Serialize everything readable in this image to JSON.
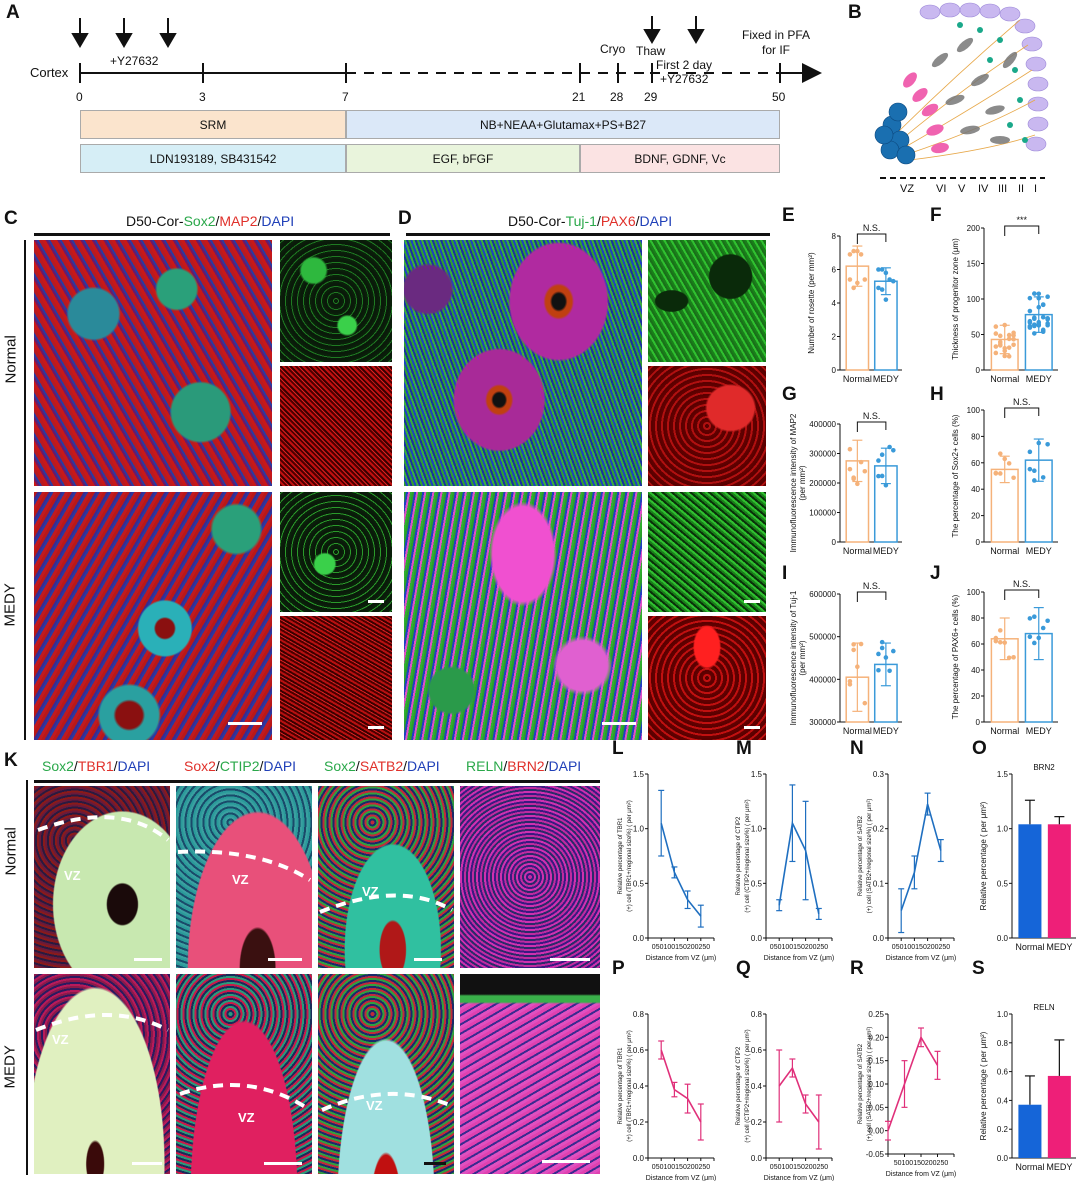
{
  "panels": {
    "A": "A",
    "B": "B",
    "C": "C",
    "D": "D",
    "E": "E",
    "F": "F",
    "G": "G",
    "H": "H",
    "I": "I",
    "J": "J",
    "K": "K",
    "L": "L",
    "M": "M",
    "N": "N",
    "O": "O",
    "P": "P",
    "Q": "Q",
    "R": "R",
    "S": "S"
  },
  "timeline": {
    "row_label": "Cortex",
    "y27632_1": "+Y27632",
    "cryo": "Cryo",
    "thaw": "Thaw",
    "first2": "First 2 day",
    "y27632_2": "+Y27632",
    "fixed1": "Fixed in PFA",
    "fixed2": "for IF",
    "ticks": [
      "0",
      "3",
      "7",
      "21",
      "28",
      "29",
      "50"
    ],
    "media": {
      "srm": "SRM",
      "nb": "NB+NEAA+Glutamax+PS+B27"
    },
    "factors": {
      "ldn": "LDN193189, SB431542",
      "egf": "EGF, bFGF",
      "bdnf": "BDNF, GDNF, Vc"
    }
  },
  "cortex_layers": [
    "VZ",
    "VI",
    "V",
    "IV",
    "III",
    "II",
    "I"
  ],
  "C": {
    "pre": "D50-Cor-",
    "s1": "Sox2",
    "sep1": "/",
    "s2": "MAP2",
    "sep2": "/",
    "s3": "DAPI"
  },
  "D": {
    "pre": "D50-Cor-",
    "s1": "Tuj-1",
    "sep1": "/",
    "s2": "PAX6",
    "sep2": "/",
    "s3": "DAPI"
  },
  "rows": {
    "normal": "Normal",
    "medy": "MEDY"
  },
  "K_titles": [
    {
      "a": "Sox2",
      "sep1": "/",
      "b": "TBR1",
      "sep2": "/",
      "c": "DAPI"
    },
    {
      "a": "Sox2",
      "sep1": "/",
      "b": "CTIP2",
      "sep2": "/",
      "c": "DAPI"
    },
    {
      "a": "Sox2",
      "sep1": "/",
      "b": "SATB2",
      "sep2": "/",
      "c": "DAPI"
    },
    {
      "a": "RELN",
      "sep1": "/",
      "b": "BRN2",
      "sep2": "/",
      "c": "DAPI"
    }
  ],
  "vz": "VZ",
  "colors": {
    "normal_orange": "#f5b27a",
    "medy_blue": "#3a9ad9",
    "line_blue": "#1f6fc0",
    "line_pink": "#e0307a",
    "bar_blue": "#1565d8",
    "bar_pink": "#ee1f78"
  },
  "chart_data": [
    {
      "id": "E",
      "type": "bar",
      "categories": [
        "Normal",
        "MEDY"
      ],
      "values": [
        6.2,
        5.3
      ],
      "errors": [
        1.2,
        0.8
      ],
      "points": [
        [
          6.9,
          7.1,
          7.1,
          6.9,
          5.4,
          5.4,
          4.9,
          5.2
        ],
        [
          6.0,
          6.0,
          5.8,
          5.4,
          5.3,
          4.9,
          4.8,
          4.2
        ]
      ],
      "ylabel": "Number of rosette (per mm²)",
      "ylim": [
        0,
        8
      ],
      "yticks": [
        "0",
        "2",
        "4",
        "6",
        "8"
      ],
      "annotation": "N.S."
    },
    {
      "id": "F",
      "type": "bar",
      "categories": [
        "Normal",
        "MEDY"
      ],
      "values": [
        43,
        78
      ],
      "errors": [
        20,
        25
      ],
      "ylabel": "Thickness of progenitor zone (μm)",
      "ylim": [
        0,
        200
      ],
      "yticks": [
        "0",
        "50",
        "100",
        "150",
        "200"
      ],
      "annotation": "***"
    },
    {
      "id": "G",
      "type": "bar",
      "categories": [
        "Normal",
        "MEDY"
      ],
      "values": [
        275000,
        258000
      ],
      "errors": [
        70000,
        60000
      ],
      "ylabel": "Immunofluorescence intensity of MAP2 (per mm²)",
      "ylim": [
        0,
        400000
      ],
      "yticks": [
        "0",
        "100000",
        "200000",
        "300000",
        "400000"
      ],
      "annotation": "N.S."
    },
    {
      "id": "H",
      "type": "bar",
      "categories": [
        "Normal",
        "MEDY"
      ],
      "values": [
        55,
        62
      ],
      "errors": [
        10,
        16
      ],
      "ylabel": "The percentage of Sox2+ cells (%)",
      "ylim": [
        0,
        100
      ],
      "yticks": [
        "0",
        "20",
        "40",
        "60",
        "80",
        "100"
      ],
      "annotation": "N.S."
    },
    {
      "id": "I",
      "type": "bar",
      "categories": [
        "Normal",
        "MEDY"
      ],
      "values": [
        405000,
        435000
      ],
      "errors": [
        80000,
        50000
      ],
      "ylabel": "Immunofluorescence intensity of Tuj-1 (per mm²)",
      "ylim": [
        300000,
        600000
      ],
      "yticks": [
        "300000",
        "400000",
        "500000",
        "600000"
      ],
      "annotation": "N.S."
    },
    {
      "id": "J",
      "type": "bar",
      "categories": [
        "Normal",
        "MEDY"
      ],
      "values": [
        64,
        68
      ],
      "errors": [
        16,
        20
      ],
      "ylabel": "The percentage of PAX6+ cells (%)",
      "ylim": [
        0,
        100
      ],
      "yticks": [
        "0",
        "20",
        "40",
        "60",
        "80",
        "100"
      ],
      "annotation": "N.S."
    },
    {
      "id": "L",
      "type": "line",
      "x": [
        50,
        100,
        150,
        200
      ],
      "y": [
        1.05,
        0.6,
        0.35,
        0.2
      ],
      "err": [
        0.3,
        0.05,
        0.08,
        0.1
      ],
      "ylabel": "Relative percentage of TBR1(+) cell (TBR1+/regional size%) ( per μm²)",
      "xlabel": "Distance from VZ (μm)",
      "ylim": [
        0,
        1.5
      ],
      "yticks": [
        "0.0",
        "0.5",
        "1.0",
        "1.5"
      ],
      "xticks": [
        "0",
        "50",
        "100",
        "150",
        "200",
        "250"
      ]
    },
    {
      "id": "M",
      "type": "line",
      "x": [
        50,
        100,
        150,
        200
      ],
      "y": [
        0.3,
        1.05,
        0.8,
        0.22
      ],
      "err": [
        0.05,
        0.35,
        0.45,
        0.05
      ],
      "ylabel": "Relative percentage of CTIP2(+) cell (CTIP2+/regional size%) ( per μm²)",
      "xlabel": "Distance from VZ (μm)",
      "ylim": [
        0,
        1.5
      ],
      "yticks": [
        "0.0",
        "0.5",
        "1.0",
        "1.5"
      ],
      "xticks": [
        "0",
        "50",
        "100",
        "150",
        "200",
        "250"
      ]
    },
    {
      "id": "N",
      "type": "line",
      "x": [
        50,
        100,
        150,
        200
      ],
      "y": [
        0.05,
        0.12,
        0.245,
        0.16
      ],
      "err": [
        0.04,
        0.03,
        0.02,
        0.02
      ],
      "ylabel": "Relative percentage of SATB2(+) cell (SATB2+/regional size%) ( per μm²)",
      "xlabel": "Distance from VZ (μm)",
      "ylim": [
        0,
        0.3
      ],
      "yticks": [
        "0.0",
        "0.1",
        "0.2",
        "0.3"
      ],
      "xticks": [
        "0",
        "50",
        "100",
        "150",
        "200",
        "250"
      ]
    },
    {
      "id": "O",
      "type": "bar",
      "title": "BRN2",
      "categories": [
        "Normal",
        "MEDY"
      ],
      "values": [
        1.04,
        1.04
      ],
      "errors": [
        0.22,
        0.07
      ],
      "ylabel": "Relative percentage ( per μm²)",
      "ylim": [
        0,
        1.5
      ],
      "yticks": [
        "0.0",
        "0.5",
        "1.0",
        "1.5"
      ]
    },
    {
      "id": "P",
      "type": "line",
      "x": [
        50,
        100,
        150,
        200
      ],
      "y": [
        0.6,
        0.38,
        0.33,
        0.2
      ],
      "err": [
        0.05,
        0.04,
        0.08,
        0.1
      ],
      "ylabel": "Relative percentage of TBR1(+) cell (TBR1+/regional size%) ( per μm²)",
      "xlabel": "Distance from VZ (μm)",
      "ylim": [
        0,
        0.8
      ],
      "yticks": [
        "0.0",
        "0.2",
        "0.4",
        "0.6",
        "0.8"
      ],
      "xticks": [
        "0",
        "50",
        "100",
        "150",
        "200",
        "250"
      ]
    },
    {
      "id": "Q",
      "type": "line",
      "x": [
        50,
        100,
        150,
        200
      ],
      "y": [
        0.4,
        0.5,
        0.3,
        0.2
      ],
      "err": [
        0.2,
        0.05,
        0.05,
        0.15
      ],
      "ylabel": "Relative percentage of CTIP2(+) cell (CTIP2+/regional size%) ( per μm²)",
      "xlabel": "Distance from VZ (μm)",
      "ylim": [
        0,
        0.8
      ],
      "yticks": [
        "0.0",
        "0.2",
        "0.4",
        "0.6",
        "0.8"
      ],
      "xticks": [
        "0",
        "50",
        "100",
        "150",
        "200",
        "250"
      ]
    },
    {
      "id": "R",
      "type": "line",
      "x": [
        50,
        100,
        150,
        200
      ],
      "y": [
        0.0,
        0.1,
        0.2,
        0.14
      ],
      "err": [
        0.02,
        0.05,
        0.02,
        0.03
      ],
      "ylabel": "Relative percentage of SATB2(+) cell (SATB2+/regional size%) ( per μm²)",
      "xlabel": "Distance from VZ (μm)",
      "ylim": [
        -0.05,
        0.25
      ],
      "yticks": [
        "-0.05",
        "0.00",
        "0.05",
        "0.10",
        "0.15",
        "0.20",
        "0.25"
      ],
      "xticks": [
        "50",
        "100",
        "150",
        "200",
        "250"
      ]
    },
    {
      "id": "S",
      "type": "bar",
      "title": "RELN",
      "categories": [
        "Normal",
        "MEDY"
      ],
      "values": [
        0.37,
        0.57
      ],
      "errors": [
        0.2,
        0.25
      ],
      "ylabel": "Relative percentage ( per μm²)",
      "ylim": [
        0,
        1.0
      ],
      "yticks": [
        "0.0",
        "0.2",
        "0.4",
        "0.6",
        "0.8",
        "1.0"
      ]
    }
  ]
}
